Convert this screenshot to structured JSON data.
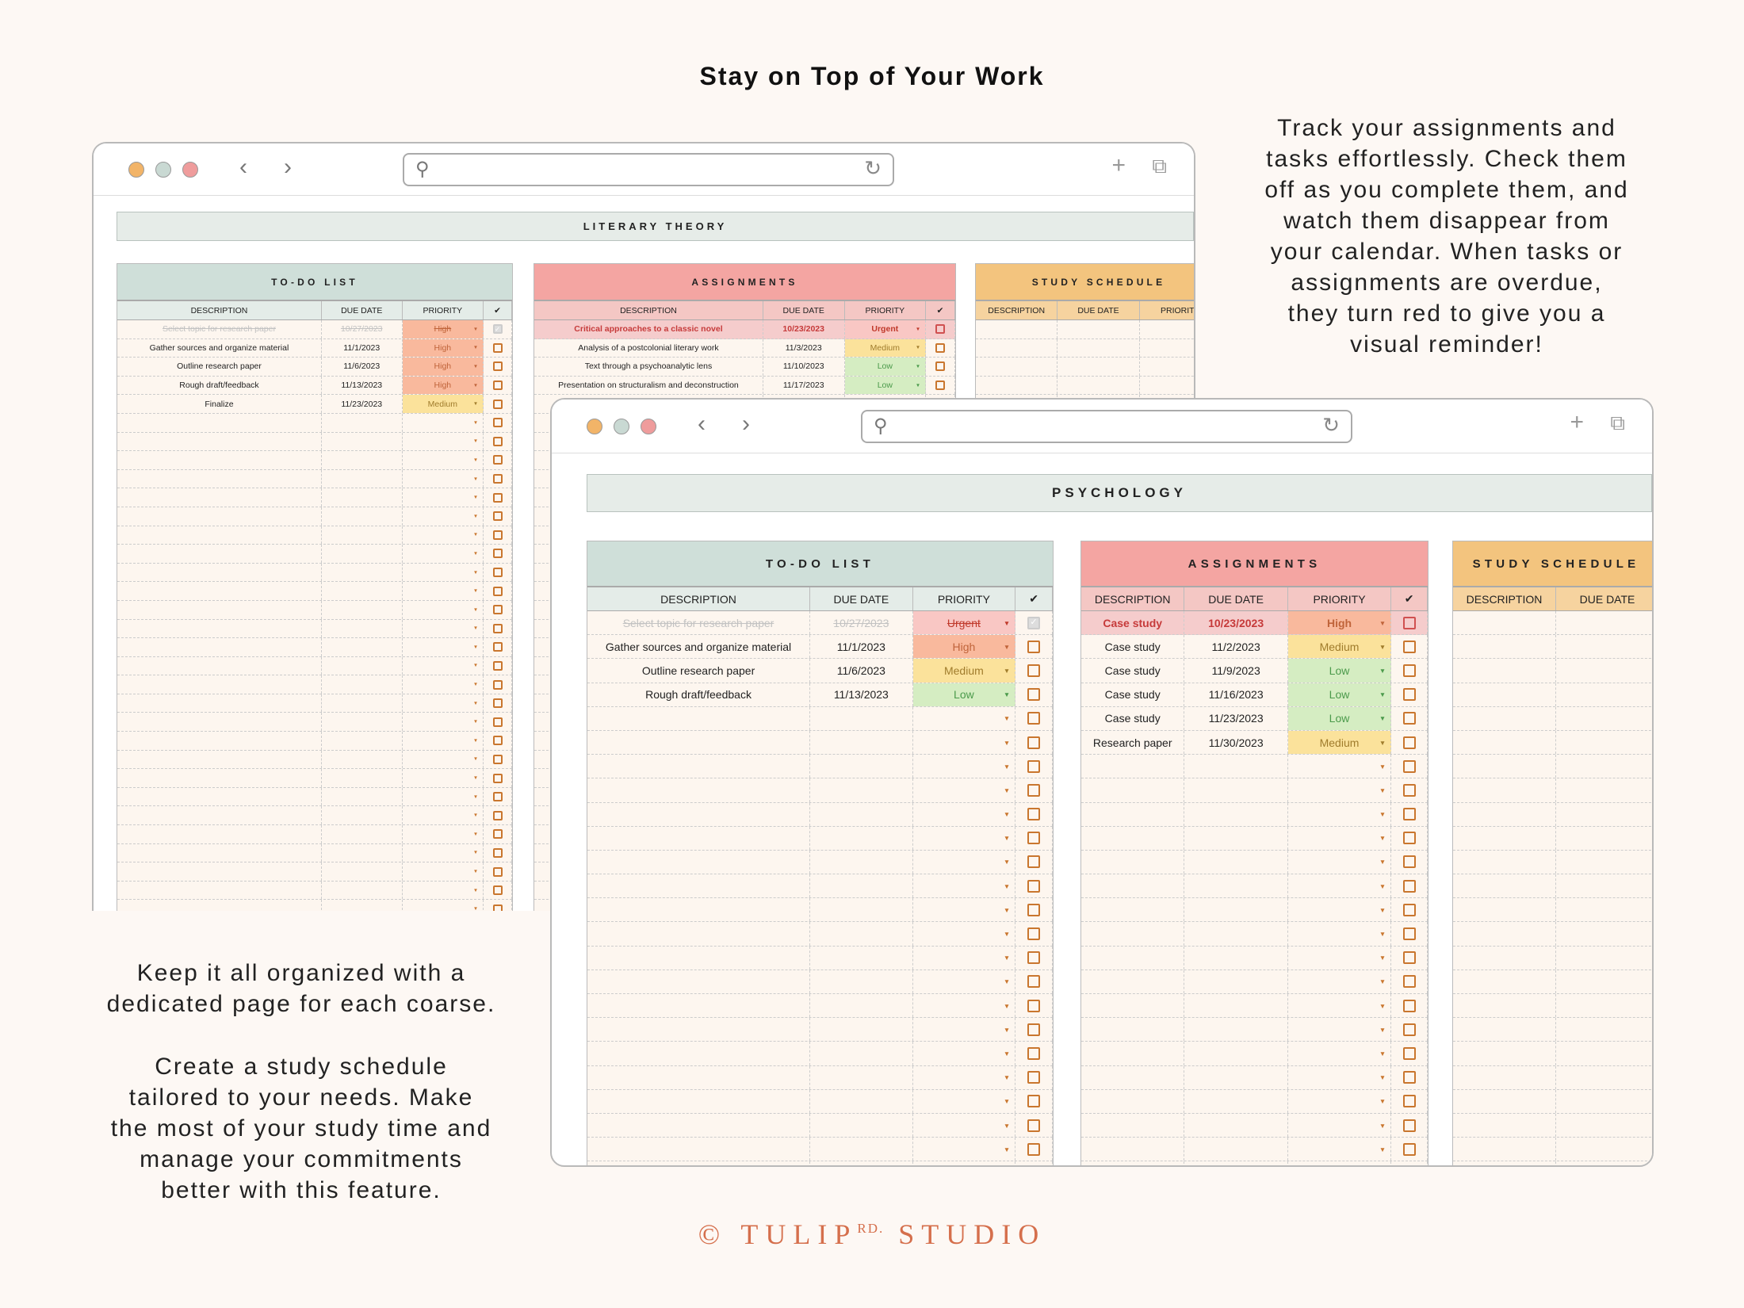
{
  "headline": "Stay on Top of Your Work",
  "right_blurb": "Track your assignments and\ntasks effortlessly. Check them\noff as you complete them, and\nwatch them disappear from\nyour calendar. When tasks or\nassignments are overdue,\nthey turn red to give you a\nvisual reminder!",
  "left_blurb_1": "Keep it all organized with a\ndedicated page for each coarse.",
  "left_blurb_2": "Create a study schedule\ntailored to your needs. Make\nthe most of your study time and\nmanage your commitments\nbetter with this feature.",
  "footer": {
    "prefix": "© TULIP",
    "sup": "RD.",
    "suffix": "STUDIO"
  },
  "colors": {
    "todo": "#cfdfd9",
    "todo_head": "#e4ece8",
    "assign": "#f4a5a2",
    "assign_head": "#f4c7c4",
    "study": "#f3c47e",
    "study_head": "#f6d39f",
    "Urgent": "#f9c7c4",
    "High": "#f9b99d",
    "Medium": "#fbe29b",
    "Low": "#d5edc2"
  },
  "priority_text": {
    "Urgent": "#c0392b",
    "High": "#c0643a",
    "Medium": "#a07c2c",
    "Low": "#4b9a4b"
  },
  "back_window": {
    "banner": "LITERARY THEORY",
    "todo": {
      "title": "TO-DO LIST",
      "columns": [
        "DESCRIPTION",
        "DUE DATE",
        "PRIORITY",
        "✔"
      ],
      "rows": [
        {
          "description": "Select topic for research paper",
          "due": "10/27/2023",
          "priority": "High",
          "status": "done"
        },
        {
          "description": "Gather sources and organize material",
          "due": "11/1/2023",
          "priority": "High",
          "status": ""
        },
        {
          "description": "Outline research paper",
          "due": "11/6/2023",
          "priority": "High",
          "status": ""
        },
        {
          "description": "Rough draft/feedback",
          "due": "11/13/2023",
          "priority": "High",
          "status": ""
        },
        {
          "description": "Finalize",
          "due": "11/23/2023",
          "priority": "Medium",
          "status": ""
        }
      ]
    },
    "assignments": {
      "title": "ASSIGNMENTS",
      "columns": [
        "DESCRIPTION",
        "DUE DATE",
        "PRIORITY",
        "✔"
      ],
      "rows": [
        {
          "description": "Critical approaches to a classic novel",
          "due": "10/23/2023",
          "priority": "Urgent",
          "status": "overdue"
        },
        {
          "description": "Analysis of a postcolonial literary work",
          "due": "11/3/2023",
          "priority": "Medium",
          "status": ""
        },
        {
          "description": "Text through a psychoanalytic lens",
          "due": "11/10/2023",
          "priority": "Low",
          "status": ""
        },
        {
          "description": "Presentation on structuralism and deconstruction",
          "due": "11/17/2023",
          "priority": "Low",
          "status": ""
        }
      ]
    },
    "study": {
      "title": "STUDY SCHEDULE",
      "columns": [
        "DESCRIPTION",
        "DUE DATE",
        "PRIORITY"
      ],
      "rows": []
    }
  },
  "front_window": {
    "banner": "PSYCHOLOGY",
    "todo": {
      "title": "TO-DO LIST",
      "columns": [
        "DESCRIPTION",
        "DUE DATE",
        "PRIORITY",
        "✔"
      ],
      "rows": [
        {
          "description": "Select topic for research paper",
          "due": "10/27/2023",
          "priority": "Urgent",
          "status": "done"
        },
        {
          "description": "Gather sources and organize material",
          "due": "11/1/2023",
          "priority": "High",
          "status": ""
        },
        {
          "description": "Outline research paper",
          "due": "11/6/2023",
          "priority": "Medium",
          "status": ""
        },
        {
          "description": "Rough draft/feedback",
          "due": "11/13/2023",
          "priority": "Low",
          "status": ""
        }
      ]
    },
    "assignments": {
      "title": "ASSIGNMENTS",
      "columns": [
        "DESCRIPTION",
        "DUE DATE",
        "PRIORITY",
        "✔"
      ],
      "rows": [
        {
          "description": "Case study",
          "due": "10/23/2023",
          "priority": "High",
          "status": "overdue"
        },
        {
          "description": "Case study",
          "due": "11/2/2023",
          "priority": "Medium",
          "status": ""
        },
        {
          "description": "Case study",
          "due": "11/9/2023",
          "priority": "Low",
          "status": ""
        },
        {
          "description": "Case study",
          "due": "11/16/2023",
          "priority": "Low",
          "status": ""
        },
        {
          "description": "Case study",
          "due": "11/23/2023",
          "priority": "Low",
          "status": ""
        },
        {
          "description": "Research paper",
          "due": "11/30/2023",
          "priority": "Medium",
          "status": ""
        }
      ]
    },
    "study": {
      "title": "STUDY SCHEDULE",
      "columns": [
        "DESCRIPTION",
        "DUE DATE"
      ],
      "rows": []
    }
  }
}
